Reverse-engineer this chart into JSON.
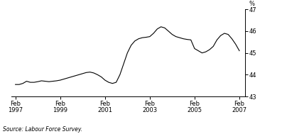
{
  "ylabel": "%",
  "source": "Source: Labour Force Survey.",
  "ylim": [
    43,
    47
  ],
  "yticks": [
    43,
    44,
    45,
    46,
    47
  ],
  "xtick_labels": [
    "Feb\n1997",
    "Feb\n1999",
    "Feb\n2001",
    "Feb\n2003",
    "Feb\n2005",
    "Feb\n2007"
  ],
  "xtick_positions": [
    1997.083,
    1999.083,
    2001.083,
    2003.083,
    2005.083,
    2007.083
  ],
  "line_color": "#000000",
  "background_color": "#ffffff",
  "x": [
    1997.083,
    1997.25,
    1997.417,
    1997.583,
    1997.75,
    1997.917,
    1998.083,
    1998.25,
    1998.417,
    1998.583,
    1998.75,
    1998.917,
    1999.083,
    1999.25,
    1999.417,
    1999.583,
    1999.75,
    1999.917,
    2000.083,
    2000.25,
    2000.417,
    2000.583,
    2000.75,
    2000.917,
    2001.083,
    2001.25,
    2001.417,
    2001.583,
    2001.75,
    2001.917,
    2002.083,
    2002.25,
    2002.417,
    2002.583,
    2002.75,
    2002.917,
    2003.083,
    2003.25,
    2003.417,
    2003.583,
    2003.75,
    2003.917,
    2004.083,
    2004.25,
    2004.417,
    2004.583,
    2004.75,
    2004.917,
    2005.083,
    2005.25,
    2005.417,
    2005.583,
    2005.75,
    2005.917,
    2006.083,
    2006.25,
    2006.417,
    2006.583,
    2006.75,
    2006.917,
    2007.083
  ],
  "y": [
    43.55,
    43.55,
    43.6,
    43.7,
    43.65,
    43.65,
    43.68,
    43.72,
    43.7,
    43.68,
    43.7,
    43.72,
    43.75,
    43.8,
    43.85,
    43.9,
    43.95,
    44.0,
    44.05,
    44.1,
    44.12,
    44.08,
    44.0,
    43.9,
    43.75,
    43.65,
    43.6,
    43.65,
    44.0,
    44.5,
    45.0,
    45.35,
    45.55,
    45.65,
    45.7,
    45.72,
    45.75,
    45.9,
    46.1,
    46.2,
    46.15,
    46.0,
    45.85,
    45.75,
    45.7,
    45.65,
    45.62,
    45.6,
    45.2,
    45.1,
    45.0,
    45.05,
    45.15,
    45.3,
    45.6,
    45.8,
    45.9,
    45.85,
    45.65,
    45.4,
    45.1
  ]
}
